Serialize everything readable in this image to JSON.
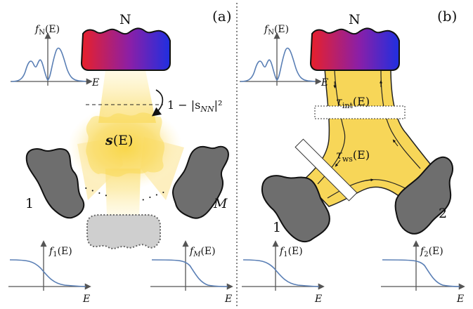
{
  "panel_a": {
    "label": "(a)",
    "reservoir_N": "N",
    "lead_1": "1",
    "lead_M": "M",
    "dots": "· · · ·",
    "scatter_symbol": "s",
    "scatter_arg": "(E)",
    "transmission_label": "1 − |s",
    "transmission_sub": "NN",
    "transmission_tail": "|²",
    "dist_top": {
      "f": "f",
      "sub": "N",
      "arg": "(E)",
      "axis": "E"
    },
    "dist_left": {
      "f": "f",
      "sub": "1",
      "arg": "(E)",
      "axis": "E"
    },
    "dist_right": {
      "f": "f",
      "sub": "M",
      "arg": "(E)",
      "axis": "E"
    }
  },
  "panel_b": {
    "label": "(b)",
    "reservoir_N": "N",
    "lead_1": "1",
    "lead_2": "2",
    "tau_int": "τ",
    "tau_int_sub": "int",
    "tau_int_arg": "(E)",
    "tau_ws": "τ",
    "tau_ws_sub": "ws",
    "tau_ws_arg": "(E)",
    "dist_top": {
      "f": "f",
      "sub": "N",
      "arg": "(E)",
      "axis": "E"
    },
    "dist_left": {
      "f": "f",
      "sub": "1",
      "arg": "(E)",
      "axis": "E"
    },
    "dist_right": {
      "f": "f",
      "sub": "2",
      "arg": "(E)",
      "axis": "E"
    }
  },
  "colors": {
    "reservoir_red": "#e8202a",
    "reservoir_blue": "#1f2fe0",
    "lead_gray": "#6e6e6e",
    "yellow": "#f7d658",
    "curve_blue": "#5a7fb5"
  }
}
